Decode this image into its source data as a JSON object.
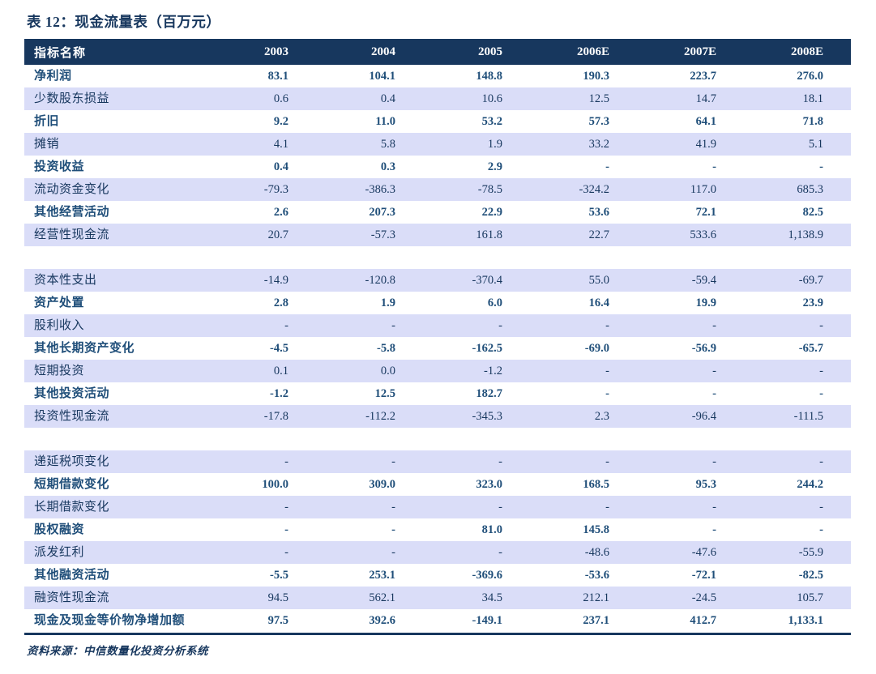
{
  "page": {
    "title": "表 12：现金流量表（百万元）",
    "footer": "资料来源：中信数量化投资分析系统"
  },
  "colors": {
    "navy_header_bg": "#17375E",
    "header_text": "#FFFFFF",
    "row_band_lavender": "#DADDF8",
    "emphasis_text": "#1F4E79",
    "normal_text": "#17375E",
    "page_bg": "#FFFFFF"
  },
  "table": {
    "columns": [
      "指标名称",
      "2003",
      "2004",
      "2005",
      "2006E",
      "2007E",
      "2008E"
    ],
    "rows": [
      {
        "style": "emphasis",
        "label": "净利润",
        "values": [
          "83.1",
          "104.1",
          "148.8",
          "190.3",
          "223.7",
          "276.0"
        ]
      },
      {
        "style": "normal",
        "label": "少数股东损益",
        "values": [
          "0.6",
          "0.4",
          "10.6",
          "12.5",
          "14.7",
          "18.1"
        ]
      },
      {
        "style": "emphasis",
        "label": "折旧",
        "values": [
          "9.2",
          "11.0",
          "53.2",
          "57.3",
          "64.1",
          "71.8"
        ]
      },
      {
        "style": "normal",
        "label": "摊销",
        "values": [
          "4.1",
          "5.8",
          "1.9",
          "33.2",
          "41.9",
          "5.1"
        ]
      },
      {
        "style": "emphasis",
        "label": "投资收益",
        "values": [
          "0.4",
          "0.3",
          "2.9",
          "-",
          "-",
          "-"
        ]
      },
      {
        "style": "normal",
        "label": "流动资金变化",
        "values": [
          "-79.3",
          "-386.3",
          "-78.5",
          "-324.2",
          "117.0",
          "685.3"
        ]
      },
      {
        "style": "emphasis",
        "label": "其他经营活动",
        "values": [
          "2.6",
          "207.3",
          "22.9",
          "53.6",
          "72.1",
          "82.5"
        ]
      },
      {
        "style": "normal",
        "label": "经营性现金流",
        "values": [
          "20.7",
          "-57.3",
          "161.8",
          "22.7",
          "533.6",
          "1,138.9"
        ]
      },
      {
        "style": "gap",
        "label": "",
        "values": [
          "",
          "",
          "",
          "",
          "",
          ""
        ]
      },
      {
        "style": "normal",
        "label": "资本性支出",
        "values": [
          "-14.9",
          "-120.8",
          "-370.4",
          "55.0",
          "-59.4",
          "-69.7"
        ]
      },
      {
        "style": "emphasis",
        "label": "资产处置",
        "values": [
          "2.8",
          "1.9",
          "6.0",
          "16.4",
          "19.9",
          "23.9"
        ]
      },
      {
        "style": "normal",
        "label": "股利收入",
        "values": [
          "-",
          "-",
          "-",
          "-",
          "-",
          "-"
        ]
      },
      {
        "style": "emphasis",
        "label": "其他长期资产变化",
        "values": [
          "-4.5",
          "-5.8",
          "-162.5",
          "-69.0",
          "-56.9",
          "-65.7"
        ]
      },
      {
        "style": "normal",
        "label": "短期投资",
        "values": [
          "0.1",
          "0.0",
          "-1.2",
          "-",
          "-",
          "-"
        ]
      },
      {
        "style": "emphasis",
        "label": "其他投资活动",
        "values": [
          "-1.2",
          "12.5",
          "182.7",
          "-",
          "-",
          "-"
        ]
      },
      {
        "style": "normal",
        "label": "投资性现金流",
        "values": [
          "-17.8",
          "-112.2",
          "-345.3",
          "2.3",
          "-96.4",
          "-111.5"
        ]
      },
      {
        "style": "gap",
        "label": "",
        "values": [
          "",
          "",
          "",
          "",
          "",
          ""
        ]
      },
      {
        "style": "normal",
        "label": "递延税项变化",
        "values": [
          "-",
          "-",
          "-",
          "-",
          "-",
          "-"
        ]
      },
      {
        "style": "emphasis",
        "label": "短期借款变化",
        "values": [
          "100.0",
          "309.0",
          "323.0",
          "168.5",
          "95.3",
          "244.2"
        ]
      },
      {
        "style": "normal",
        "label": "长期借款变化",
        "values": [
          "-",
          "-",
          "-",
          "-",
          "-",
          "-"
        ]
      },
      {
        "style": "emphasis",
        "label": "股权融资",
        "values": [
          "-",
          "-",
          "81.0",
          "145.8",
          "-",
          "-"
        ]
      },
      {
        "style": "normal",
        "label": "派发红利",
        "values": [
          "-",
          "-",
          "-",
          "-48.6",
          "-47.6",
          "-55.9"
        ]
      },
      {
        "style": "emphasis",
        "label": "其他融资活动",
        "values": [
          "-5.5",
          "253.1",
          "-369.6",
          "-53.6",
          "-72.1",
          "-82.5"
        ]
      },
      {
        "style": "normal",
        "label": "融资性现金流",
        "values": [
          "94.5",
          "562.1",
          "34.5",
          "212.1",
          "-24.5",
          "105.7"
        ]
      },
      {
        "style": "emphasis",
        "label": "现金及现金等价物净增加额",
        "values": [
          "97.5",
          "392.6",
          "-149.1",
          "237.1",
          "412.7",
          "1,133.1"
        ]
      }
    ]
  }
}
